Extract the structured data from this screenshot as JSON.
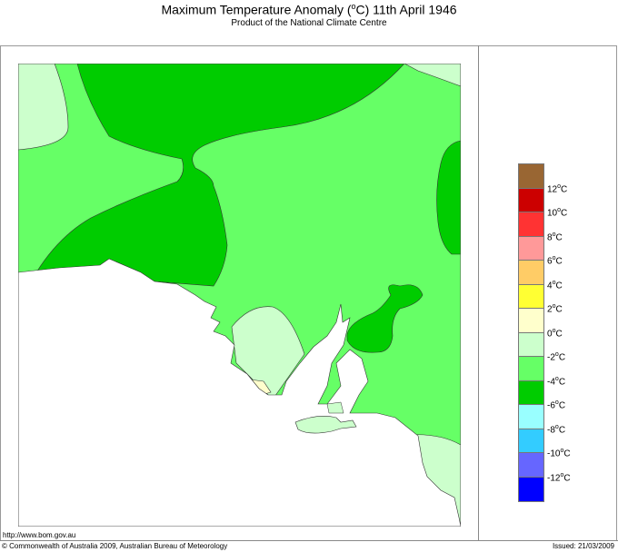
{
  "header": {
    "title_prefix": "Maximum Temperature Anomaly (",
    "title_degree": "o",
    "title_suffix": "C)  11th April 1946",
    "subtitle": "Product of the National Climate Centre"
  },
  "legend": {
    "colors": [
      "#996633",
      "#cc0000",
      "#ff3333",
      "#ff9999",
      "#ffcc66",
      "#ffff33",
      "#ffffcc",
      "#ccffcc",
      "#66ff66",
      "#00cc00",
      "#99ffff",
      "#33ccff",
      "#6666ff",
      "#0000ff"
    ],
    "labels": [
      {
        "num": "12",
        "unit": "C"
      },
      {
        "num": "10",
        "unit": "C"
      },
      {
        "num": "8",
        "unit": "C"
      },
      {
        "num": "6",
        "unit": "C"
      },
      {
        "num": "4",
        "unit": "C"
      },
      {
        "num": "2",
        "unit": "C"
      },
      {
        "num": "0",
        "unit": "C"
      },
      {
        "num": "-2",
        "unit": "C"
      },
      {
        "num": "-4",
        "unit": "C"
      },
      {
        "num": "-6",
        "unit": "C"
      },
      {
        "num": "-8",
        "unit": "C"
      },
      {
        "num": "-10",
        "unit": "C"
      },
      {
        "num": "-12",
        "unit": "C"
      }
    ],
    "degree": "o"
  },
  "map": {
    "region": "South Australia",
    "zones": [
      {
        "name": "-2 to 0",
        "color": "#ccffcc"
      },
      {
        "name": "-4 to -2",
        "color": "#66ff66"
      },
      {
        "name": "-6 to -4",
        "color": "#00cc00"
      },
      {
        "name": "0 to 2",
        "color": "#ffffcc"
      }
    ]
  },
  "footer": {
    "url": "http://www.bom.gov.au",
    "copyright": "© Commonwealth of Australia 2009, Australian Bureau of Meteorology",
    "issued": "Issued: 21/03/2009"
  }
}
